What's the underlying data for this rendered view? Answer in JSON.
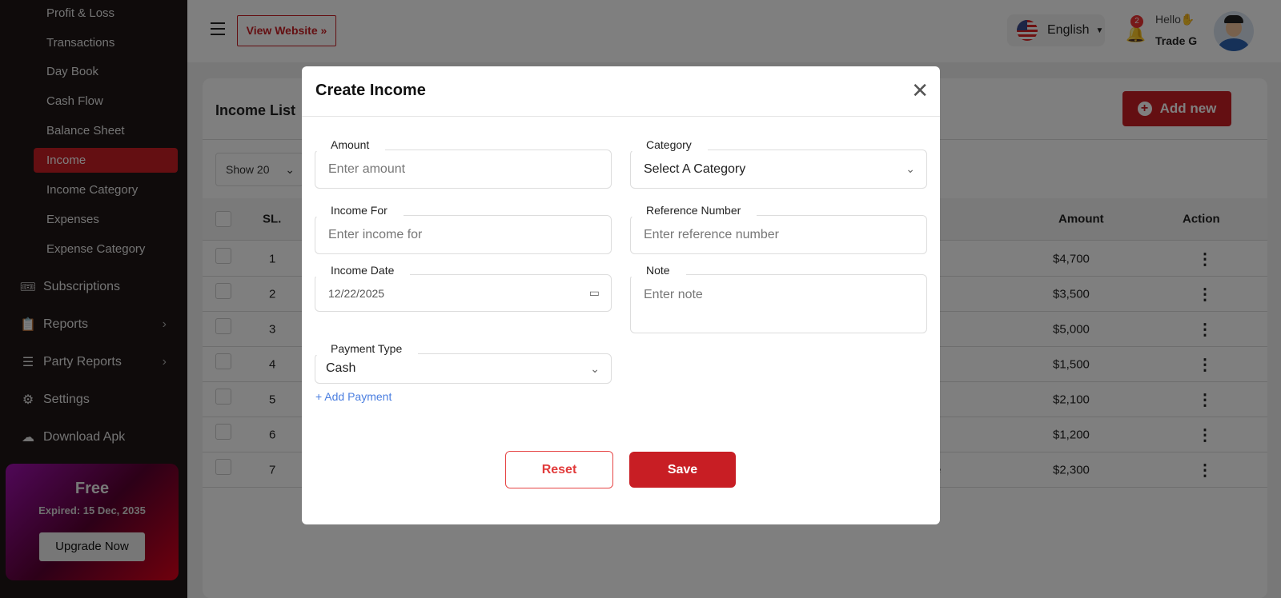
{
  "sidebar": {
    "sub_items": [
      "Profit & Loss",
      "Transactions",
      "Day Book",
      "Cash Flow",
      "Balance Sheet",
      "Income",
      "Income Category",
      "Expenses",
      "Expense Category"
    ],
    "active": "Income",
    "items": [
      {
        "label": "Subscriptions",
        "icon": "ticket-icon"
      },
      {
        "label": "Reports",
        "icon": "clipboard-icon"
      },
      {
        "label": "Party Reports",
        "icon": "list-icon"
      },
      {
        "label": "Settings",
        "icon": "gear-icon"
      },
      {
        "label": "Download Apk",
        "icon": "cloud-download-icon"
      }
    ],
    "promo": {
      "plan": "Free",
      "expiry": "Expired: 15 Dec, 2035",
      "button": "Upgrade Now"
    }
  },
  "header": {
    "view_website": "View Website »",
    "language": "English",
    "notifications": "2",
    "greeting": "Hello",
    "user": "Trade G"
  },
  "page": {
    "title": "Income List",
    "add_new": "Add new",
    "show": "Show 20",
    "columns": {
      "sl": "SL.",
      "amount": "Amount",
      "action": "Action"
    },
    "rows": [
      {
        "sl": "1",
        "amount": "$4,700"
      },
      {
        "sl": "2",
        "amount": "$3,500"
      },
      {
        "sl": "3",
        "amount": "$5,000"
      },
      {
        "sl": "4",
        "amount": "$1,500"
      },
      {
        "sl": "5",
        "amount": "$2,100"
      },
      {
        "sl": "6",
        "amount": "$1,200"
      },
      {
        "sl": "7",
        "amount": "$2,300",
        "partial": "e"
      }
    ]
  },
  "modal": {
    "title": "Create Income",
    "amount": {
      "label": "Amount",
      "placeholder": "Enter amount"
    },
    "category": {
      "label": "Category",
      "value": "Select A Category"
    },
    "income_for": {
      "label": "Income For",
      "placeholder": "Enter income for"
    },
    "reference": {
      "label": "Reference Number",
      "placeholder": "Enter reference number"
    },
    "date": {
      "label": "Income Date",
      "value": "12/22/2025"
    },
    "note": {
      "label": "Note",
      "placeholder": "Enter note"
    },
    "payment": {
      "label": "Payment Type",
      "value": "Cash"
    },
    "add_payment": "+ Add Payment",
    "reset": "Reset",
    "save": "Save"
  }
}
